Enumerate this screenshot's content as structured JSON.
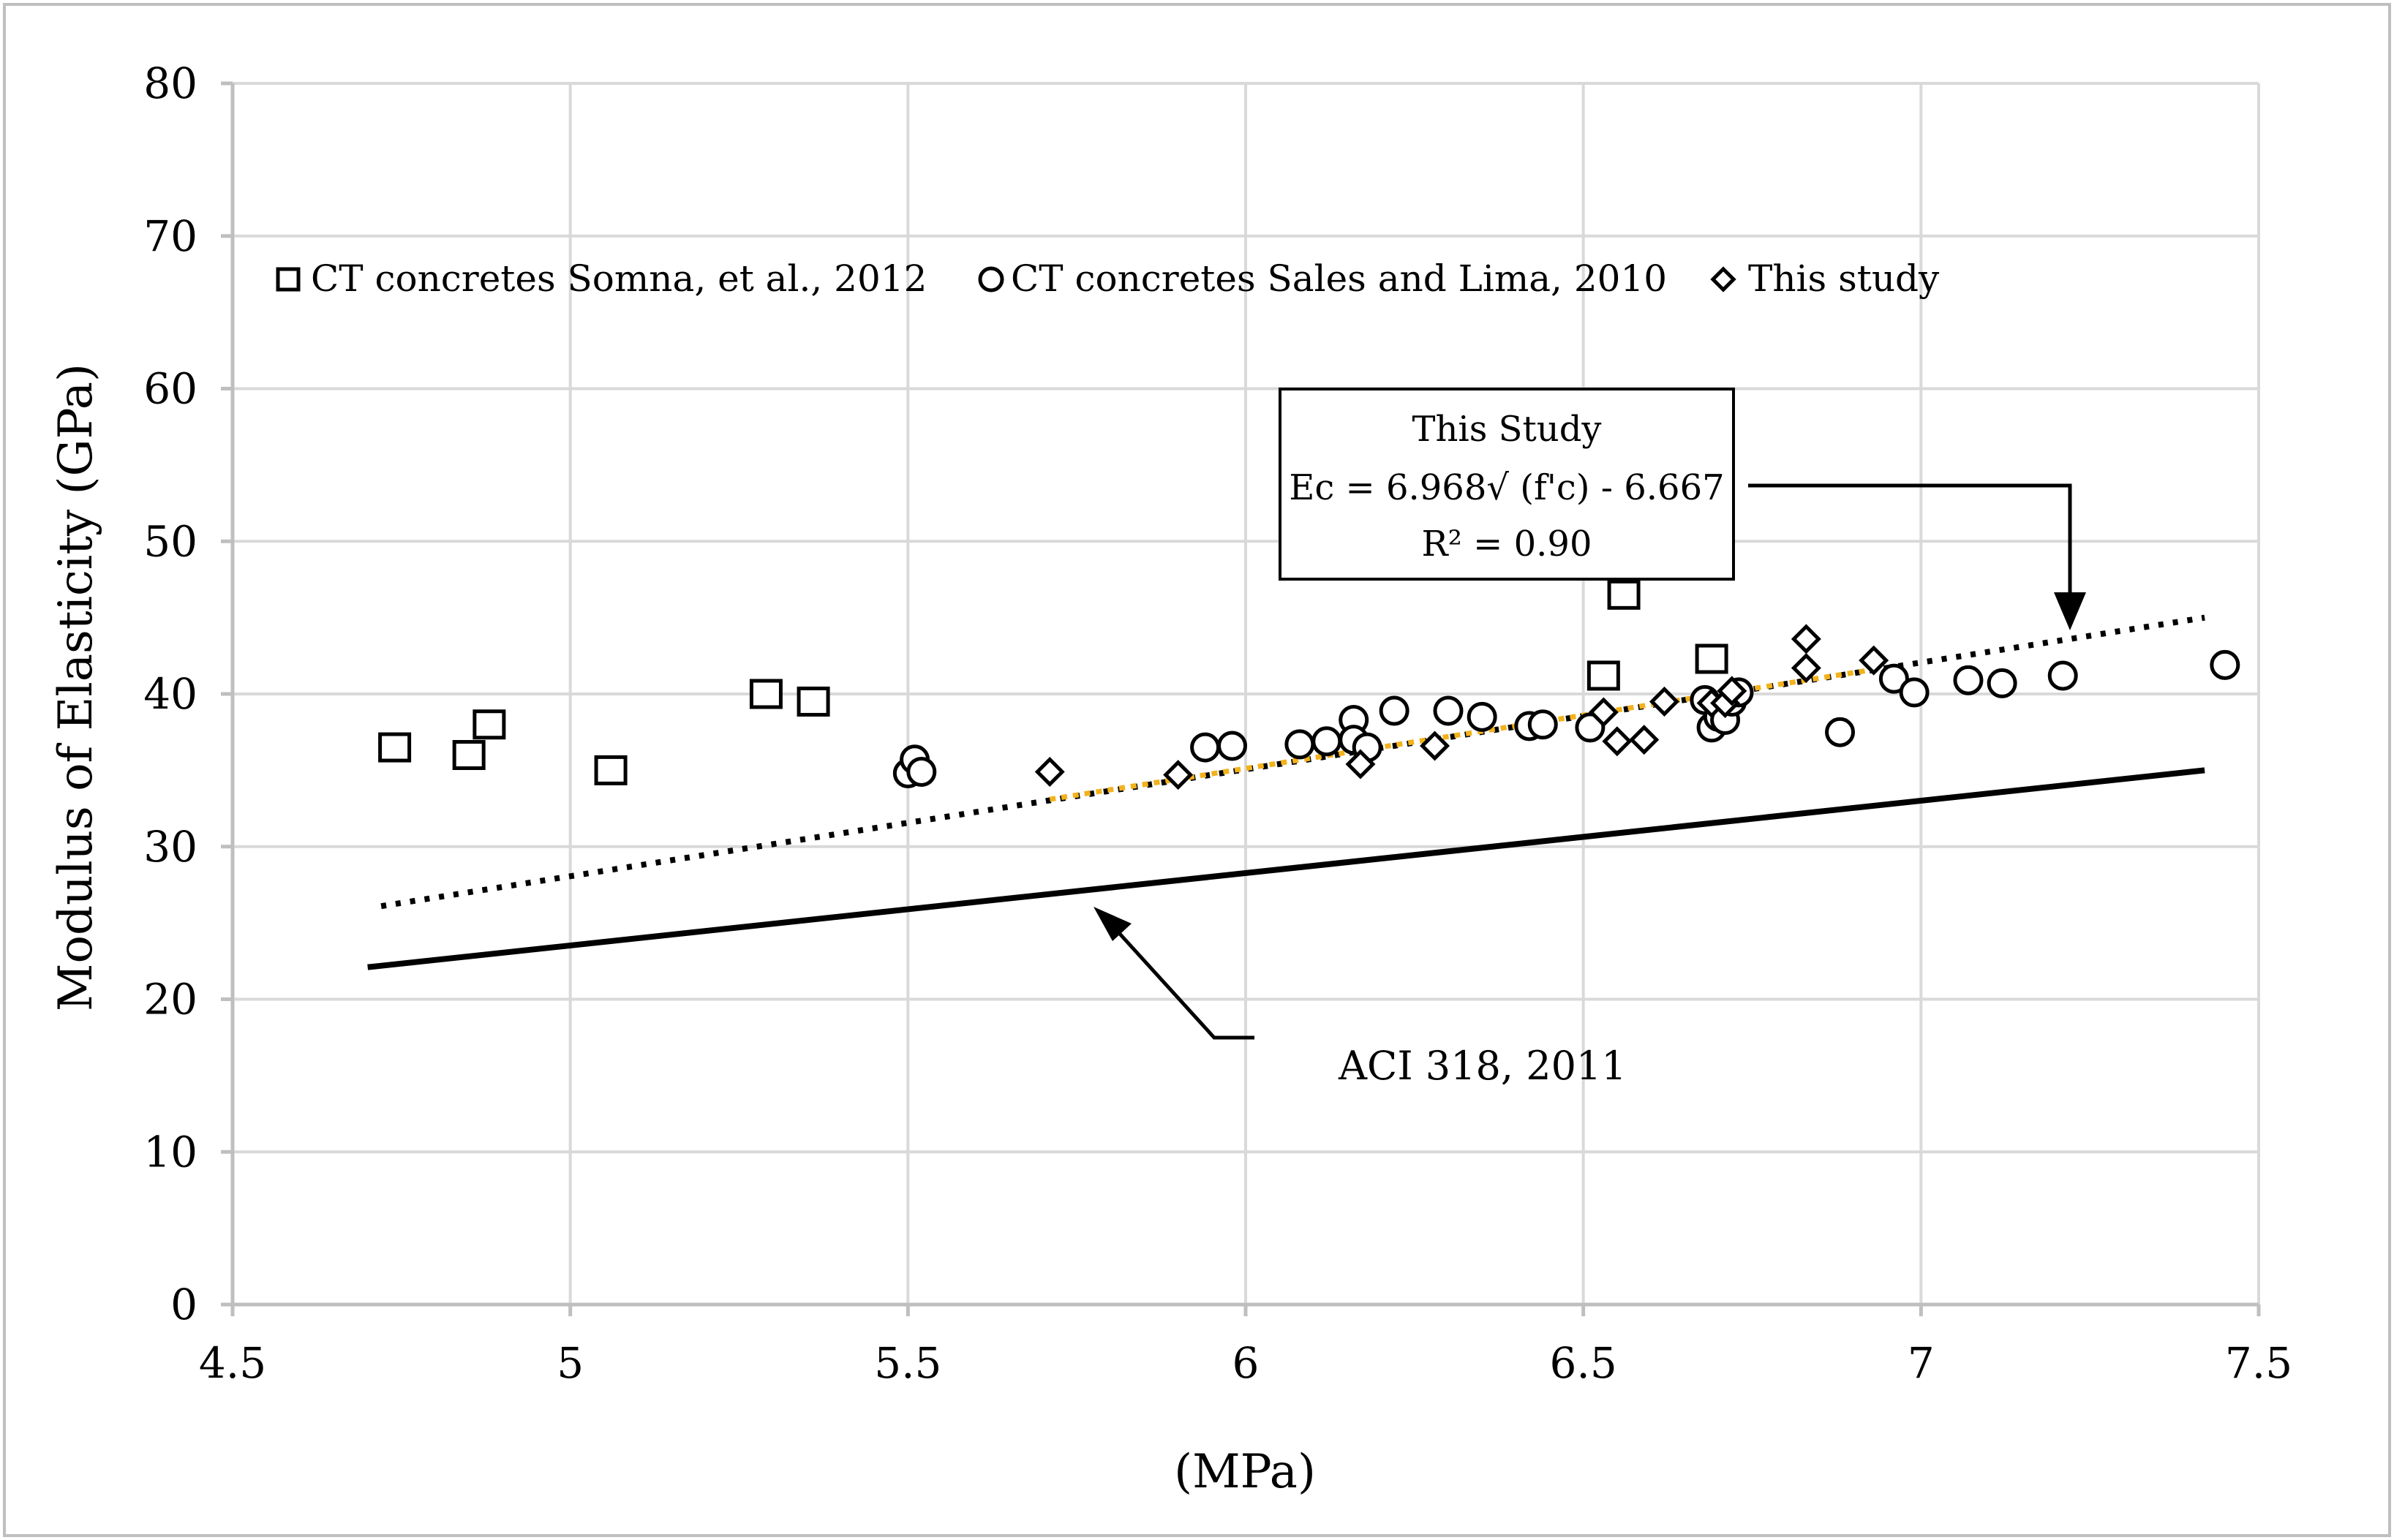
{
  "chart_data": {
    "type": "scatter",
    "title": "",
    "xlabel": "(MPa)",
    "ylabel": "Modulus of Elasticity (GPa)",
    "xlim": [
      4.5,
      7.5
    ],
    "ylim": [
      0,
      80
    ],
    "x_ticks": [
      4.5,
      5,
      5.5,
      6,
      6.5,
      7,
      7.5
    ],
    "y_ticks": [
      0,
      10,
      20,
      30,
      40,
      50,
      60,
      70,
      80
    ],
    "grid": true,
    "legend_position": "top",
    "series": [
      {
        "name": "CT concretes Somna, et al., 2012",
        "marker": "square",
        "points": [
          [
            4.74,
            36.5
          ],
          [
            4.85,
            36.0
          ],
          [
            4.88,
            38.0
          ],
          [
            5.06,
            35.0
          ],
          [
            5.29,
            40.0
          ],
          [
            5.36,
            39.5
          ],
          [
            6.53,
            41.2
          ],
          [
            6.56,
            46.5
          ],
          [
            6.69,
            42.3
          ]
        ]
      },
      {
        "name": "CT concretes Sales and Lima, 2010",
        "marker": "circle",
        "points": [
          [
            5.5,
            34.8
          ],
          [
            5.51,
            35.7
          ],
          [
            5.52,
            34.9
          ],
          [
            5.94,
            36.5
          ],
          [
            5.98,
            36.6
          ],
          [
            6.08,
            36.7
          ],
          [
            6.12,
            36.9
          ],
          [
            6.16,
            38.3
          ],
          [
            6.16,
            37.0
          ],
          [
            6.18,
            36.5
          ],
          [
            6.22,
            38.9
          ],
          [
            6.3,
            38.9
          ],
          [
            6.35,
            38.5
          ],
          [
            6.42,
            37.9
          ],
          [
            6.44,
            38.0
          ],
          [
            6.51,
            37.8
          ],
          [
            6.68,
            39.6
          ],
          [
            6.69,
            37.8
          ],
          [
            6.7,
            38.5
          ],
          [
            6.71,
            38.3
          ],
          [
            6.72,
            39.5
          ],
          [
            6.73,
            40.1
          ],
          [
            6.88,
            37.5
          ],
          [
            6.96,
            41.0
          ],
          [
            6.99,
            40.1
          ],
          [
            7.07,
            40.9
          ],
          [
            7.12,
            40.7
          ],
          [
            7.21,
            41.2
          ],
          [
            7.45,
            41.9
          ]
        ]
      },
      {
        "name": "This study",
        "marker": "diamond",
        "points": [
          [
            5.71,
            34.9
          ],
          [
            5.9,
            34.7
          ],
          [
            6.17,
            35.4
          ],
          [
            6.28,
            36.6
          ],
          [
            6.53,
            38.8
          ],
          [
            6.55,
            36.9
          ],
          [
            6.59,
            37.0
          ],
          [
            6.62,
            39.5
          ],
          [
            6.69,
            39.4
          ],
          [
            6.71,
            39.4
          ],
          [
            6.72,
            40.2
          ],
          [
            6.83,
            43.6
          ],
          [
            6.83,
            41.7
          ],
          [
            6.93,
            42.2
          ]
        ]
      }
    ],
    "lines": [
      {
        "name": "This Study trend",
        "style": "dotted",
        "from": [
          4.72,
          26.1
        ],
        "to": [
          7.42,
          45.0
        ]
      },
      {
        "name": "ACI 318, 2011",
        "style": "solid",
        "from": [
          4.7,
          22.1
        ],
        "to": [
          7.42,
          35.0
        ]
      },
      {
        "name": "This study fit (highlight)",
        "style": "dashed-orange",
        "from": [
          5.71,
          33.1
        ],
        "to": [
          6.93,
          41.6
        ]
      }
    ],
    "annotations": {
      "this_study_box": {
        "line1": "This Study",
        "line2": "Ec = 6.968√ (f'c) - 6.667",
        "line3": "R² = 0.90"
      },
      "aci_label": "ACI 318, 2011"
    },
    "colors": {
      "markers": "#000000",
      "grid": "#d9d9d9",
      "axis": "#bfbfbf",
      "highlight": "#f2b21b",
      "frame": "#bfbfbf"
    }
  }
}
